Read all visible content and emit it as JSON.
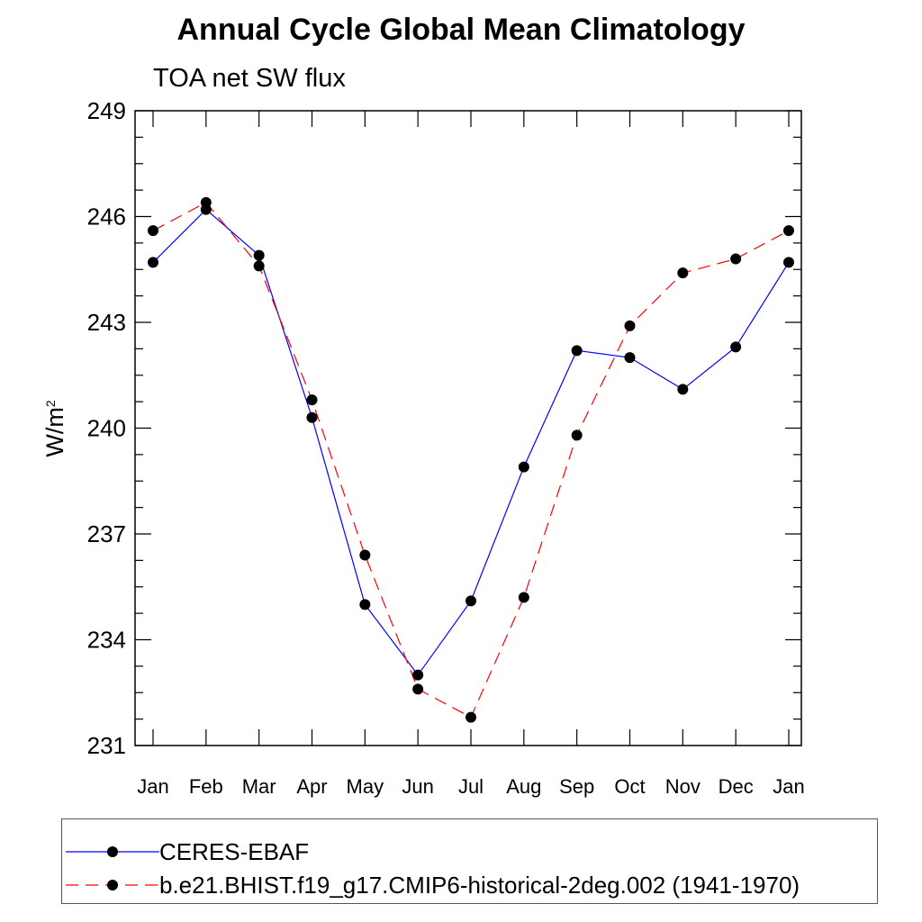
{
  "chart_data": {
    "type": "line",
    "title": "Annual Cycle Global Mean Climatology",
    "subtitle": "TOA net SW flux",
    "ylabel": "W/m",
    "ylabel_sup": "2",
    "xlabel": "",
    "ylim": [
      231,
      249
    ],
    "yticks": [
      231,
      234,
      237,
      240,
      243,
      246,
      249
    ],
    "categories": [
      "Jan",
      "Feb",
      "Mar",
      "Apr",
      "May",
      "Jun",
      "Jul",
      "Aug",
      "Sep",
      "Oct",
      "Nov",
      "Dec",
      "Jan"
    ],
    "grid": false,
    "legend_position": "bottom",
    "series": [
      {
        "name": "CERES-EBAF",
        "color": "#0000ff",
        "dash": "solid",
        "values": [
          244.7,
          246.2,
          244.9,
          240.3,
          235.0,
          233.0,
          235.1,
          238.9,
          242.2,
          242.0,
          241.1,
          242.3,
          244.7
        ]
      },
      {
        "name": "b.e21.BHIST.f19_g17.CMIP6-historical-2deg.002 (1941-1970)",
        "color": "#ff0000",
        "dash": "dashed",
        "values": [
          245.6,
          246.4,
          244.6,
          240.8,
          236.4,
          232.6,
          231.8,
          235.2,
          239.8,
          242.9,
          244.4,
          244.8,
          245.6
        ]
      }
    ]
  }
}
